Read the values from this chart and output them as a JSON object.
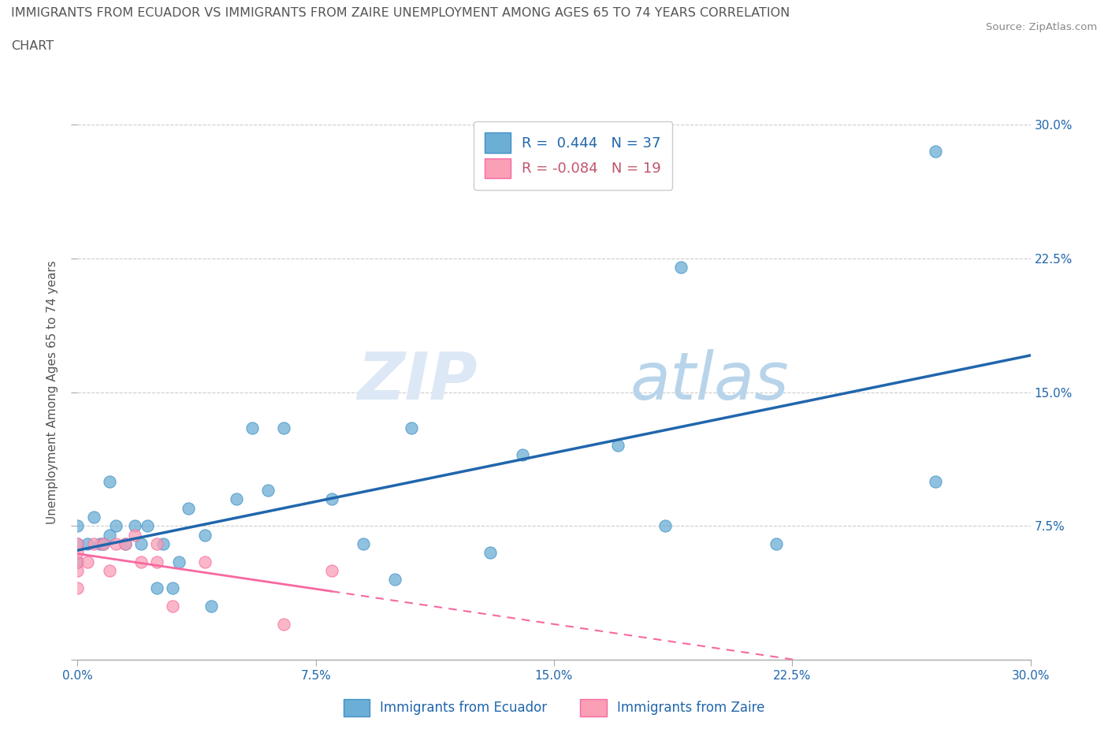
{
  "title_line1": "IMMIGRANTS FROM ECUADOR VS IMMIGRANTS FROM ZAIRE UNEMPLOYMENT AMONG AGES 65 TO 74 YEARS CORRELATION",
  "title_line2": "CHART",
  "source": "Source: ZipAtlas.com",
  "ylabel": "Unemployment Among Ages 65 to 74 years",
  "xlim": [
    0.0,
    0.3
  ],
  "ylim": [
    0.0,
    0.3
  ],
  "xticks": [
    0.0,
    0.075,
    0.15,
    0.225,
    0.3
  ],
  "yticks": [
    0.0,
    0.075,
    0.15,
    0.225,
    0.3
  ],
  "xticklabels": [
    "0.0%",
    "7.5%",
    "15.0%",
    "22.5%",
    "30.0%"
  ],
  "right_yticklabels": [
    "7.5%",
    "15.0%",
    "22.5%",
    "30.0%"
  ],
  "ecuador_color": "#6baed6",
  "ecuador_edge": "#4292c6",
  "zaire_color": "#fa9fb5",
  "zaire_edge": "#f768a1",
  "line_ecuador_color": "#2166ac",
  "line_zaire_color": "#f768a1",
  "ecuador_R": 0.444,
  "ecuador_N": 37,
  "zaire_R": -0.084,
  "zaire_N": 19,
  "watermark_zip": "ZIP",
  "watermark_atlas": "atlas",
  "ecuador_points_x": [
    0.0,
    0.0,
    0.0,
    0.003,
    0.005,
    0.007,
    0.008,
    0.01,
    0.01,
    0.012,
    0.015,
    0.018,
    0.02,
    0.022,
    0.025,
    0.027,
    0.03,
    0.032,
    0.035,
    0.04,
    0.042,
    0.05,
    0.055,
    0.06,
    0.065,
    0.08,
    0.09,
    0.1,
    0.105,
    0.13,
    0.14,
    0.17,
    0.185,
    0.19,
    0.22,
    0.27,
    0.27
  ],
  "ecuador_points_y": [
    0.055,
    0.065,
    0.075,
    0.065,
    0.08,
    0.065,
    0.065,
    0.07,
    0.1,
    0.075,
    0.065,
    0.075,
    0.065,
    0.075,
    0.04,
    0.065,
    0.04,
    0.055,
    0.085,
    0.07,
    0.03,
    0.09,
    0.13,
    0.095,
    0.13,
    0.09,
    0.065,
    0.045,
    0.13,
    0.06,
    0.115,
    0.12,
    0.075,
    0.22,
    0.065,
    0.285,
    0.1
  ],
  "zaire_points_x": [
    0.0,
    0.0,
    0.0,
    0.0,
    0.0,
    0.003,
    0.005,
    0.008,
    0.01,
    0.012,
    0.015,
    0.018,
    0.02,
    0.025,
    0.025,
    0.03,
    0.04,
    0.065,
    0.08
  ],
  "zaire_points_y": [
    0.04,
    0.05,
    0.055,
    0.06,
    0.065,
    0.055,
    0.065,
    0.065,
    0.05,
    0.065,
    0.065,
    0.07,
    0.055,
    0.055,
    0.065,
    0.03,
    0.055,
    0.02,
    0.05
  ]
}
